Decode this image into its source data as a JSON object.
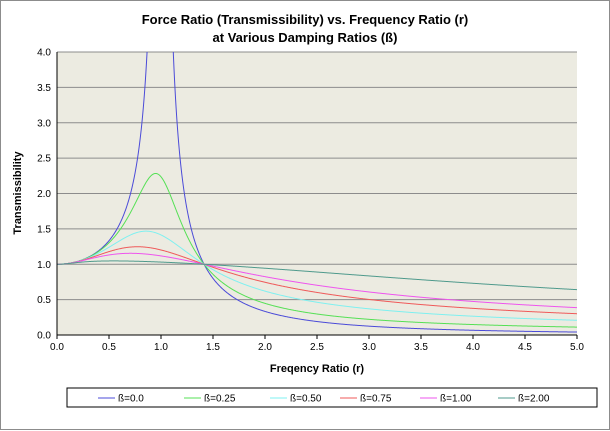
{
  "chart_data": {
    "type": "line",
    "title": "Force Ratio (Transmissibility)  vs. Frequency Ratio (r)",
    "subtitle": "at Various Damping Ratios (ß)",
    "xlabel": "Freqency Ratio (r)",
    "ylabel": "Transmissibility",
    "xlim": [
      0.0,
      5.0
    ],
    "ylim": [
      0.0,
      4.0
    ],
    "x_ticks": [
      "0.0",
      "0.5",
      "1.0",
      "1.5",
      "2.0",
      "2.5",
      "3.0",
      "3.5",
      "4.0",
      "4.5",
      "5.0"
    ],
    "y_ticks": [
      "0.0",
      "0.5",
      "1.0",
      "1.5",
      "2.0",
      "2.5",
      "3.0",
      "3.5",
      "4.0"
    ],
    "grid": "horizontal",
    "legend_position": "bottom",
    "plot_background": "#ecebe1",
    "x": [
      0.0,
      0.25,
      0.5,
      0.75,
      1.0,
      1.25,
      1.414,
      1.75,
      2.0,
      2.5,
      3.0,
      3.5,
      4.0,
      4.5,
      5.0
    ],
    "series": [
      {
        "name": "ß=0.0",
        "color": "#4b4bd8",
        "damping": 0.0,
        "values": [
          1.0,
          1.067,
          1.333,
          2.286,
          null,
          1.778,
          1.0,
          0.485,
          0.333,
          0.19,
          0.125,
          0.089,
          0.067,
          0.052,
          0.042
        ],
        "peak_near_resonance": "off-scale"
      },
      {
        "name": "ß=0.25",
        "color": "#55e055",
        "damping": 0.25,
        "values": [
          1.0,
          1.065,
          1.29,
          1.79,
          2.24,
          1.58,
          1.0,
          0.58,
          0.43,
          0.28,
          0.21,
          0.17,
          0.145,
          0.125,
          0.11
        ]
      },
      {
        "name": "ß=0.50",
        "color": "#7ff0f0",
        "damping": 0.5,
        "values": [
          1.0,
          1.06,
          1.21,
          1.41,
          1.41,
          1.25,
          1.0,
          0.72,
          0.6,
          0.45,
          0.36,
          0.31,
          0.27,
          0.24,
          0.22
        ]
      },
      {
        "name": "ß=0.75",
        "color": "#ef5a5a",
        "damping": 0.75,
        "values": [
          1.0,
          1.05,
          1.15,
          1.22,
          1.2,
          1.12,
          1.0,
          0.83,
          0.74,
          0.6,
          0.51,
          0.45,
          0.4,
          0.36,
          0.33
        ]
      },
      {
        "name": "ß=1.00",
        "color": "#ee55ee",
        "damping": 1.0,
        "values": [
          1.0,
          1.04,
          1.11,
          1.15,
          1.12,
          1.07,
          1.0,
          0.89,
          0.82,
          0.7,
          0.62,
          0.55,
          0.5,
          0.46,
          0.42
        ]
      },
      {
        "name": "ß=2.00",
        "color": "#4f9a8c",
        "damping": 2.0,
        "values": [
          1.0,
          1.02,
          1.03,
          1.04,
          1.03,
          1.02,
          1.0,
          0.96,
          0.93,
          0.87,
          0.81,
          0.76,
          0.72,
          0.68,
          0.64
        ]
      }
    ]
  }
}
